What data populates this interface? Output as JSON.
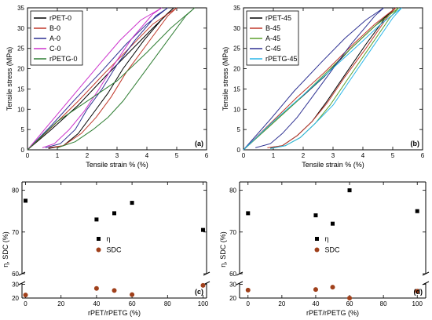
{
  "chart_data": [
    {
      "id": "a",
      "type": "line",
      "panel_label": "(a)",
      "xlabel": "Tensile strain % (%)",
      "ylabel": "Tensile stress (MPa)",
      "xlim": [
        0,
        6
      ],
      "ylim": [
        0,
        35
      ],
      "xticks": [
        0,
        1,
        2,
        3,
        4,
        5,
        6
      ],
      "yticks": [
        0,
        5,
        10,
        15,
        20,
        25,
        30,
        35
      ],
      "legend_position": "top-left",
      "series": [
        {
          "name": "rPET-0",
          "color": "#000000",
          "points": [
            [
              0.0,
              0
            ],
            [
              0.8,
              5
            ],
            [
              1.7,
              11
            ],
            [
              2.6,
              18
            ],
            [
              3.4,
              24
            ],
            [
              4.2,
              30
            ],
            [
              4.9,
              35
            ],
            [
              4.6,
              33
            ],
            [
              3.9,
              27
            ],
            [
              3.2,
              20
            ],
            [
              2.7,
              14
            ],
            [
              2.2,
              9
            ],
            [
              1.7,
              4
            ],
            [
              1.2,
              1
            ],
            [
              0.7,
              0.3
            ]
          ]
        },
        {
          "name": "B-0",
          "color": "#c0392b",
          "points": [
            [
              0.0,
              0
            ],
            [
              0.8,
              5.5
            ],
            [
              1.7,
              12
            ],
            [
              2.6,
              19
            ],
            [
              3.4,
              25
            ],
            [
              4.2,
              31
            ],
            [
              5.0,
              35
            ],
            [
              4.7,
              33
            ],
            [
              4.0,
              26
            ],
            [
              3.3,
              19
            ],
            [
              2.8,
              13
            ],
            [
              2.3,
              8
            ],
            [
              1.8,
              4
            ],
            [
              1.2,
              1
            ],
            [
              0.7,
              0.5
            ]
          ]
        },
        {
          "name": "A-0",
          "color": "#2e3192",
          "points": [
            [
              0.0,
              0
            ],
            [
              0.8,
              6
            ],
            [
              1.6,
              12.5
            ],
            [
              2.5,
              19.5
            ],
            [
              3.3,
              26
            ],
            [
              4.0,
              31
            ],
            [
              4.7,
              35
            ],
            [
              4.3,
              33
            ],
            [
              3.6,
              27
            ],
            [
              3.0,
              21
            ],
            [
              2.5,
              15
            ],
            [
              2.0,
              10
            ],
            [
              1.6,
              5
            ],
            [
              1.1,
              1.5
            ],
            [
              0.6,
              0.5
            ]
          ]
        },
        {
          "name": "C-0",
          "color": "#cc33cc",
          "points": [
            [
              0.0,
              0
            ],
            [
              0.8,
              7
            ],
            [
              1.6,
              14
            ],
            [
              2.4,
              21
            ],
            [
              3.1,
              27
            ],
            [
              3.8,
              32
            ],
            [
              4.5,
              35
            ],
            [
              4.2,
              33.5
            ],
            [
              3.5,
              27.5
            ],
            [
              2.9,
              21
            ],
            [
              2.4,
              15
            ],
            [
              1.9,
              9.5
            ],
            [
              1.4,
              5
            ],
            [
              0.9,
              1.5
            ],
            [
              0.5,
              0.5
            ]
          ]
        },
        {
          "name": "rPETG-0",
          "color": "#2e7d32",
          "points": [
            [
              0.0,
              0
            ],
            [
              1.0,
              7
            ],
            [
              2.0,
              12
            ],
            [
              3.0,
              17
            ],
            [
              4.0,
              24
            ],
            [
              4.8,
              30
            ],
            [
              5.6,
              35
            ],
            [
              5.3,
              33
            ],
            [
              4.5,
              25
            ],
            [
              3.8,
              18
            ],
            [
              3.2,
              12
            ],
            [
              2.7,
              8
            ],
            [
              2.2,
              5
            ],
            [
              1.6,
              2
            ],
            [
              1.0,
              0.5
            ]
          ]
        }
      ]
    },
    {
      "id": "b",
      "type": "line",
      "panel_label": "(b)",
      "xlabel": "Tensile strain % (%)",
      "ylabel": "Tensile stress (MPa)",
      "xlim": [
        0,
        6
      ],
      "ylim": [
        0,
        35
      ],
      "xticks": [
        0,
        1,
        2,
        3,
        4,
        5,
        6
      ],
      "yticks": [
        0,
        5,
        10,
        15,
        20,
        25,
        30,
        35
      ],
      "legend_position": "top-left",
      "series": [
        {
          "name": "rPET-45",
          "color": "#000000",
          "points": [
            [
              0.0,
              0
            ],
            [
              0.9,
              6
            ],
            [
              1.8,
              12
            ],
            [
              2.7,
              18
            ],
            [
              3.6,
              25
            ],
            [
              4.4,
              30.5
            ],
            [
              5.1,
              35
            ],
            [
              4.8,
              33
            ],
            [
              4.1,
              26
            ],
            [
              3.4,
              18.5
            ],
            [
              2.8,
              12
            ],
            [
              2.3,
              7
            ],
            [
              1.8,
              3.5
            ],
            [
              1.3,
              1
            ],
            [
              0.9,
              0.5
            ]
          ]
        },
        {
          "name": "B-45",
          "color": "#c0392b",
          "points": [
            [
              0.0,
              0
            ],
            [
              0.9,
              6.5
            ],
            [
              1.8,
              13
            ],
            [
              2.7,
              19
            ],
            [
              3.6,
              25.5
            ],
            [
              4.4,
              31
            ],
            [
              5.1,
              35
            ],
            [
              4.8,
              32.5
            ],
            [
              4.1,
              25
            ],
            [
              3.4,
              18
            ],
            [
              2.8,
              11.5
            ],
            [
              2.3,
              7
            ],
            [
              1.8,
              3.5
            ],
            [
              1.3,
              1
            ],
            [
              0.8,
              0.5
            ]
          ]
        },
        {
          "name": "A-45",
          "color": "#5aa02c",
          "points": [
            [
              0.0,
              0
            ],
            [
              0.9,
              6
            ],
            [
              1.8,
              12
            ],
            [
              2.7,
              18.5
            ],
            [
              3.6,
              25
            ],
            [
              4.4,
              30.5
            ],
            [
              5.2,
              35
            ],
            [
              4.9,
              32.5
            ],
            [
              4.2,
              25
            ],
            [
              3.5,
              17.5
            ],
            [
              2.9,
              11
            ],
            [
              2.4,
              6.5
            ],
            [
              1.9,
              3
            ],
            [
              1.4,
              1
            ],
            [
              0.9,
              0.3
            ]
          ]
        },
        {
          "name": "C-45",
          "color": "#2e3192",
          "points": [
            [
              0.0,
              0
            ],
            [
              0.9,
              7.5
            ],
            [
              1.7,
              14.5
            ],
            [
              2.6,
              21.5
            ],
            [
              3.4,
              27.5
            ],
            [
              4.1,
              32
            ],
            [
              4.7,
              35
            ],
            [
              4.4,
              33
            ],
            [
              3.6,
              26
            ],
            [
              2.9,
              19
            ],
            [
              2.3,
              13
            ],
            [
              1.8,
              8
            ],
            [
              1.3,
              4
            ],
            [
              0.9,
              1.5
            ],
            [
              0.4,
              0.5
            ]
          ]
        },
        {
          "name": "rPETG-45",
          "color": "#29b6e8",
          "points": [
            [
              0.0,
              0
            ],
            [
              1.0,
              7
            ],
            [
              2.0,
              13.5
            ],
            [
              2.9,
              19.5
            ],
            [
              3.8,
              25.5
            ],
            [
              4.6,
              31
            ],
            [
              5.3,
              35
            ],
            [
              5.0,
              32.5
            ],
            [
              4.3,
              25
            ],
            [
              3.6,
              17.5
            ],
            [
              3.0,
              11
            ],
            [
              2.4,
              6.5
            ],
            [
              1.9,
              3
            ],
            [
              1.4,
              1
            ],
            [
              0.9,
              0.3
            ]
          ]
        }
      ]
    },
    {
      "id": "c",
      "type": "scatter",
      "panel_label": "(c)",
      "xlabel": "rPET/rPETG (%)",
      "ylabel": "η, SDC (%)",
      "xlim": [
        -2,
        102
      ],
      "xticks": [
        0,
        20,
        40,
        60,
        80,
        100
      ],
      "broken_y_axis": true,
      "ylim_lower": [
        20,
        30
      ],
      "ylim_upper": [
        60,
        80
      ],
      "yticks_lower": [
        20,
        30
      ],
      "yticks_upper": [
        60,
        70,
        80
      ],
      "legend_position": "center",
      "series": [
        {
          "name": "η",
          "color": "#000000",
          "marker": "square",
          "x": [
            0,
            40,
            50,
            60,
            100
          ],
          "y": [
            77.5,
            73,
            74.5,
            77,
            70.5
          ]
        },
        {
          "name": "SDC",
          "color": "#a0401b",
          "marker": "circle",
          "x": [
            0,
            40,
            50,
            60,
            100
          ],
          "y": [
            22.2,
            27,
            25.5,
            22.5,
            29.2
          ]
        }
      ]
    },
    {
      "id": "d",
      "type": "scatter",
      "panel_label": "(d)",
      "xlabel": "rPET/rPETG (%)",
      "ylabel": "η, SDC (%)",
      "xlim": [
        -5,
        105
      ],
      "xticks": [
        0,
        20,
        40,
        60,
        80,
        100
      ],
      "broken_y_axis": true,
      "ylim_lower": [
        20,
        30
      ],
      "ylim_upper": [
        60,
        80
      ],
      "yticks_lower": [
        20,
        30
      ],
      "yticks_upper": [
        60,
        70,
        80
      ],
      "legend_position": "center",
      "series": [
        {
          "name": "η",
          "color": "#000000",
          "marker": "square",
          "x": [
            0,
            40,
            50,
            60,
            100
          ],
          "y": [
            74.5,
            74,
            72,
            80,
            75
          ]
        },
        {
          "name": "SDC",
          "color": "#a0401b",
          "marker": "circle",
          "x": [
            0,
            40,
            50,
            60,
            100
          ],
          "y": [
            25.8,
            26.2,
            27.9,
            20,
            25
          ]
        }
      ]
    }
  ]
}
